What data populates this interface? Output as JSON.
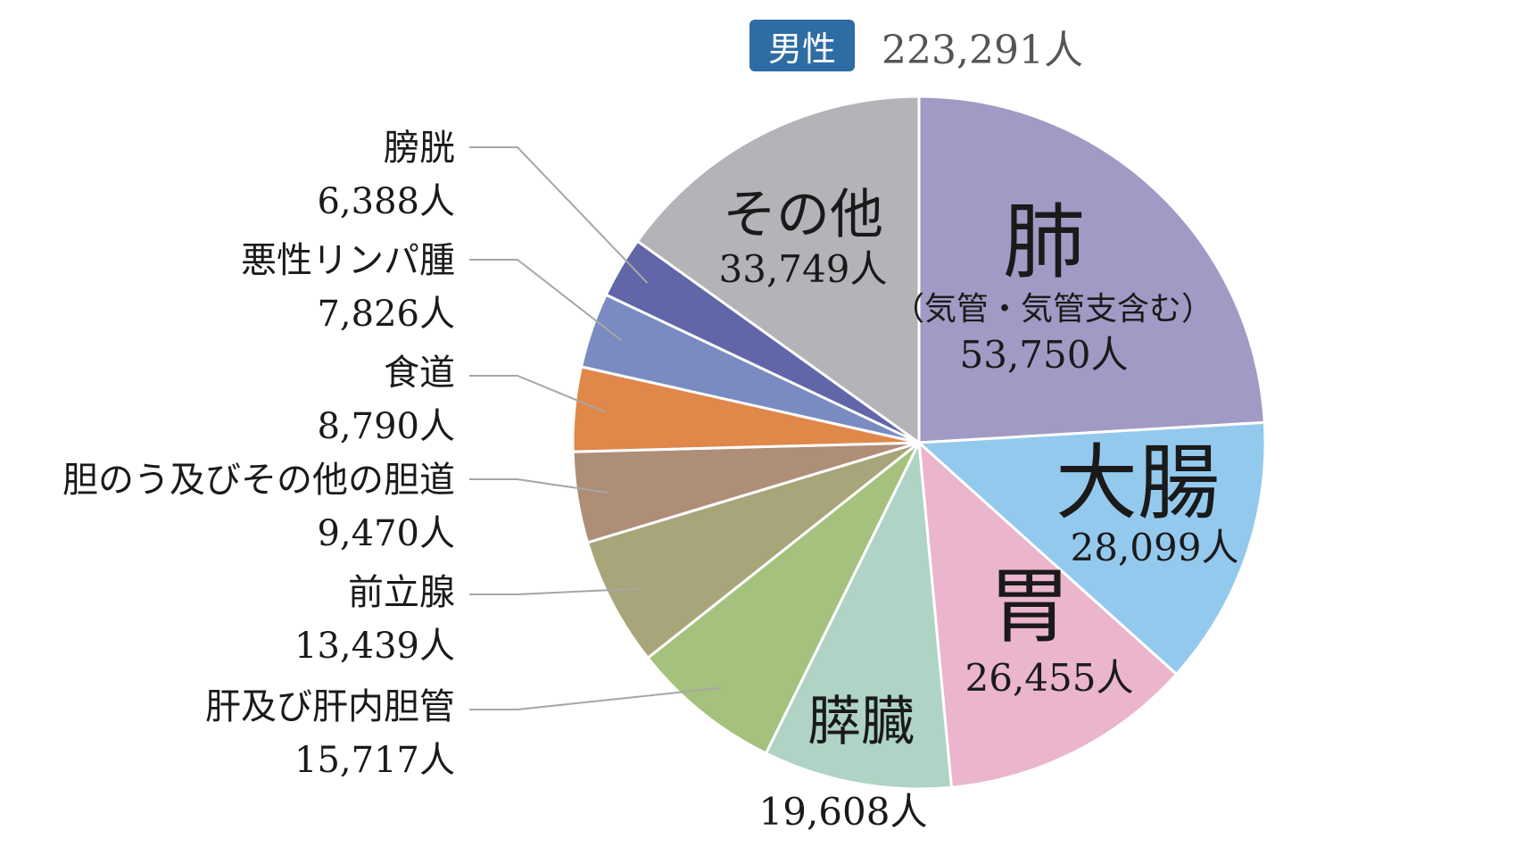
{
  "header": {
    "badge": "男性",
    "total": "223,291人"
  },
  "chart_data": {
    "type": "pie",
    "title": "",
    "total": 223291,
    "unit": "人",
    "start_angle_deg": 0,
    "direction": "clockwise",
    "slices": [
      {
        "label": "肺",
        "sublabel": "（気管・気管支含む）",
        "value": 53750,
        "value_text": "53,750人",
        "color": "#a29ac4"
      },
      {
        "label": "大腸",
        "value": 28099,
        "value_text": "28,099人",
        "color": "#94c9ee"
      },
      {
        "label": "胃",
        "value": 26455,
        "value_text": "26,455人",
        "color": "#eab5cd"
      },
      {
        "label": "膵臓",
        "value": 19608,
        "value_text": "19,608人",
        "color": "#afd3c4"
      },
      {
        "label": "肝及び肝内胆管",
        "value": 15717,
        "value_text": "15,717人",
        "color": "#a4c27e"
      },
      {
        "label": "前立腺",
        "value": 13439,
        "value_text": "13,439人",
        "color": "#a8a57a"
      },
      {
        "label": "胆のう及びその他の胆道",
        "value": 9470,
        "value_text": "9,470人",
        "color": "#af8e78"
      },
      {
        "label": "食道",
        "value": 8790,
        "value_text": "8,790人",
        "color": "#e0874a"
      },
      {
        "label": "悪性リンパ腫",
        "value": 7826,
        "value_text": "7,826人",
        "color": "#7a8bc1"
      },
      {
        "label": "膀胱",
        "value": 6388,
        "value_text": "6,388人",
        "color": "#6066a8"
      },
      {
        "label": "その他",
        "value": 33749,
        "value_text": "33,749人",
        "color": "#b4b3b8"
      }
    ]
  }
}
